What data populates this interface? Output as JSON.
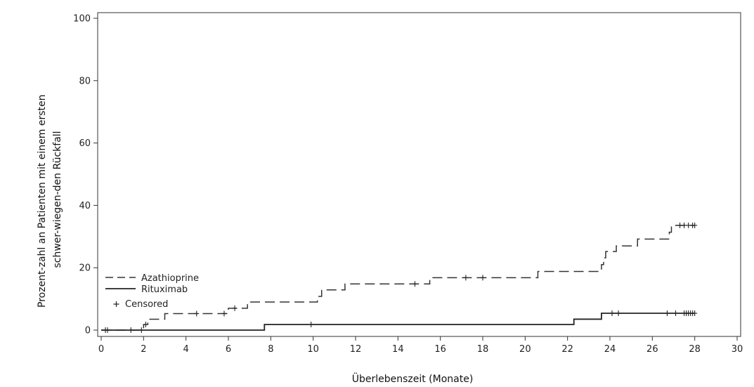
{
  "chart_data": {
    "type": "line",
    "subtype": "kaplan-meier step plot (cumulative incidence)",
    "title": "",
    "xlabel": "Überlebenszeit (Monate)",
    "ylabel_line1": "Prozent-zahl an Patienten mit einem ersten",
    "ylabel_line2": "schwer-wiegen-den Rückfall",
    "xlim": [
      0,
      30
    ],
    "ylim": [
      0,
      100
    ],
    "x_ticks": [
      0,
      2,
      4,
      6,
      8,
      10,
      12,
      14,
      16,
      18,
      20,
      22,
      24,
      26,
      28,
      30
    ],
    "y_ticks": [
      0,
      20,
      40,
      60,
      80,
      100
    ],
    "grid": false,
    "legend_position": "lower-left",
    "legend": {
      "azathioprine": "Azathioprine",
      "rituximab": "Rituximab",
      "censored": "Censored"
    },
    "series": [
      {
        "name": "Azathioprine",
        "line_style": "dashed",
        "steps": [
          [
            0.0,
            0.0
          ],
          [
            2.0,
            1.8
          ],
          [
            2.2,
            3.5
          ],
          [
            3.0,
            5.3
          ],
          [
            6.0,
            7.0
          ],
          [
            6.9,
            9.0
          ],
          [
            10.2,
            10.8
          ],
          [
            10.4,
            12.9
          ],
          [
            11.5,
            14.8
          ],
          [
            15.5,
            16.8
          ],
          [
            20.6,
            18.8
          ],
          [
            23.6,
            21.0
          ],
          [
            23.7,
            23.2
          ],
          [
            23.8,
            25.2
          ],
          [
            24.3,
            27.0
          ],
          [
            25.3,
            29.2
          ],
          [
            26.8,
            31.4
          ],
          [
            26.9,
            33.6
          ],
          [
            28.0,
            33.6
          ]
        ],
        "censored_x": [
          0.2,
          0.3,
          1.4,
          1.9,
          2.1,
          4.5,
          5.8,
          6.3,
          14.8,
          17.2,
          18.0,
          27.3,
          27.5,
          27.7,
          27.9,
          28.0
        ]
      },
      {
        "name": "Rituximab",
        "line_style": "solid",
        "steps": [
          [
            0.0,
            0.0
          ],
          [
            7.7,
            1.8
          ],
          [
            22.3,
            3.5
          ],
          [
            23.6,
            5.4
          ],
          [
            28.0,
            5.4
          ]
        ],
        "censored_x": [
          9.9,
          24.1,
          24.4,
          26.7,
          27.1,
          27.5,
          27.6,
          27.7,
          27.8,
          27.9,
          28.0
        ]
      }
    ]
  }
}
